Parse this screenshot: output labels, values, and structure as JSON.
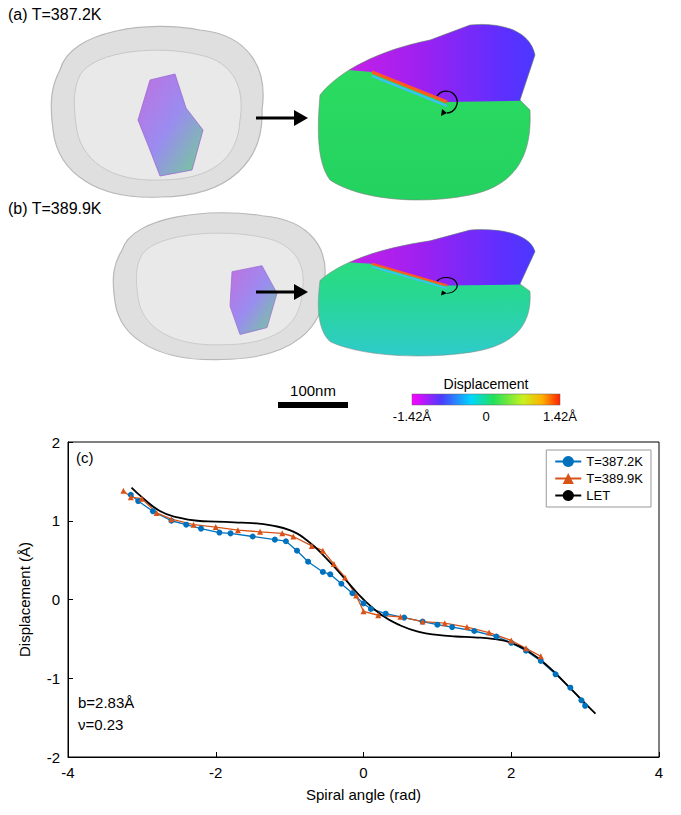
{
  "panels": [
    {
      "label": "(a) T=387.2K"
    },
    {
      "label": "(b) T=389.9K"
    }
  ],
  "scale_bar": {
    "label": "100nm"
  },
  "colorbar": {
    "title": "Displacement",
    "range": [
      -1.42,
      1.42
    ],
    "ticks": [
      {
        "value": -1.42,
        "label": "-1.42Å"
      },
      {
        "value": 0,
        "label": "0"
      },
      {
        "value": 1.42,
        "label": "1.42Å"
      }
    ]
  },
  "chart_data": {
    "type": "line",
    "title": "(c)",
    "x_label": "Spiral angle (rad)",
    "y_label": "Displacement (Å)",
    "xlim": [
      -4,
      4
    ],
    "xticks": [
      -4,
      -2,
      0,
      2,
      4
    ],
    "ylim": [
      -2,
      2
    ],
    "yticks": [
      -2,
      -1,
      0,
      1,
      2
    ],
    "legend": "upper right",
    "grid": false,
    "annotations": [
      "b=2.83Å",
      "ν=0.23"
    ],
    "series": [
      {
        "name": "T=387.2K",
        "color": "#0072bd",
        "marker": "circle",
        "line_style": "solid",
        "x": [
          -3.15,
          -3.05,
          -2.85,
          -2.6,
          -2.4,
          -2.2,
          -1.95,
          -1.8,
          -1.5,
          -1.2,
          -1.05,
          -0.9,
          -0.75,
          -0.55,
          -0.45,
          -0.3,
          -0.15,
          0,
          0.1,
          0.3,
          0.55,
          0.8,
          1.0,
          1.2,
          1.5,
          1.8,
          2.0,
          2.2,
          2.4,
          2.6,
          2.8,
          2.95,
          3.0
        ],
        "values": [
          1.33,
          1.25,
          1.12,
          1.0,
          0.95,
          0.9,
          0.85,
          0.84,
          0.8,
          0.76,
          0.74,
          0.62,
          0.48,
          0.35,
          0.32,
          0.2,
          0.08,
          -0.05,
          -0.12,
          -0.18,
          -0.23,
          -0.28,
          -0.32,
          -0.35,
          -0.4,
          -0.47,
          -0.55,
          -0.65,
          -0.78,
          -0.95,
          -1.12,
          -1.28,
          -1.35
        ]
      },
      {
        "name": "T=389.9K",
        "color": "#d95319",
        "marker": "triangle",
        "line_style": "solid",
        "x": [
          -3.25,
          -3.15,
          -3.0,
          -2.8,
          -2.6,
          -2.3,
          -2.0,
          -1.7,
          -1.4,
          -1.1,
          -0.95,
          -0.7,
          -0.55,
          -0.4,
          -0.25,
          -0.1,
          0.0,
          0.2,
          0.5,
          0.8,
          1.1,
          1.4,
          1.7,
          2.0,
          2.2,
          2.4
        ],
        "values": [
          1.38,
          1.3,
          1.28,
          1.1,
          1.02,
          0.95,
          0.92,
          0.88,
          0.86,
          0.84,
          0.8,
          0.68,
          0.62,
          0.45,
          0.28,
          0.05,
          -0.15,
          -0.2,
          -0.22,
          -0.28,
          -0.3,
          -0.35,
          -0.42,
          -0.52,
          -0.62,
          -0.72
        ]
      },
      {
        "name": "LET",
        "color": "#000000",
        "marker": "none",
        "line_style": "solid",
        "x": [
          -3.14,
          -3.0,
          -2.75,
          -2.5,
          -2.25,
          -2.0,
          -1.75,
          -1.5,
          -1.25,
          -1.0,
          -0.75,
          -0.5,
          -0.25,
          0,
          0.25,
          0.5,
          0.75,
          1.0,
          1.25,
          1.5,
          1.75,
          2.0,
          2.25,
          2.5,
          2.75,
          3.0,
          3.14
        ],
        "values": [
          1.42,
          1.3,
          1.12,
          1.04,
          1.0,
          0.99,
          0.98,
          0.97,
          0.94,
          0.88,
          0.74,
          0.52,
          0.26,
          0.0,
          -0.2,
          -0.33,
          -0.41,
          -0.45,
          -0.47,
          -0.48,
          -0.5,
          -0.55,
          -0.67,
          -0.85,
          -1.08,
          -1.32,
          -1.45
        ]
      }
    ]
  }
}
